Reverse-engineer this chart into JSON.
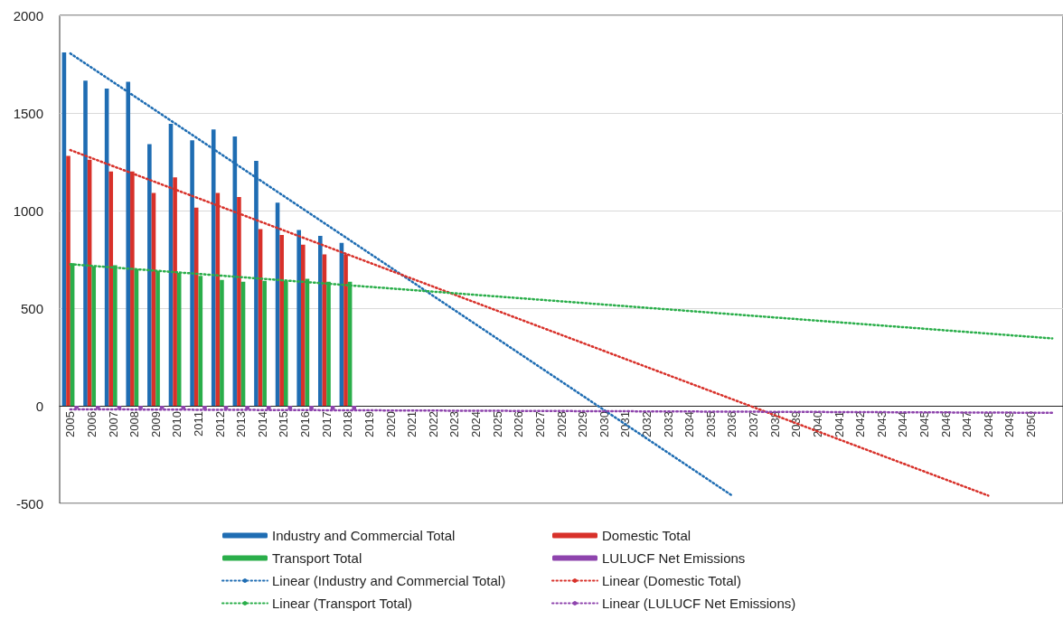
{
  "chart_data": {
    "type": "bar",
    "categories": [
      "2005",
      "2006",
      "2007",
      "2008",
      "2009",
      "2010",
      "2011",
      "2012",
      "2013",
      "2014",
      "2015",
      "2016",
      "2017",
      "2018",
      "2019",
      "2020",
      "2021",
      "2022",
      "2023",
      "2024",
      "2025",
      "2026",
      "2027",
      "2028",
      "2029",
      "2030",
      "2031",
      "2032",
      "2033",
      "2034",
      "2035",
      "2036",
      "2037",
      "2038",
      "2039",
      "2040",
      "2041",
      "2042",
      "2043",
      "2044",
      "2045",
      "2046",
      "2047",
      "2048",
      "2049",
      "2050",
      null
    ],
    "series": [
      {
        "name": "Industry and Commercial Total",
        "color": "#1f6db3",
        "values": [
          1810,
          1665,
          1625,
          1660,
          1340,
          1445,
          1360,
          1415,
          1380,
          1255,
          1040,
          900,
          870,
          835,
          null,
          null,
          null,
          null,
          null,
          null,
          null,
          null,
          null,
          null,
          null,
          null,
          null,
          null,
          null,
          null,
          null,
          null,
          null,
          null,
          null,
          null,
          null,
          null,
          null,
          null,
          null,
          null,
          null,
          null,
          null,
          null,
          null
        ]
      },
      {
        "name": "Domestic Total",
        "color": "#d8312a",
        "values": [
          1280,
          1260,
          1200,
          1200,
          1090,
          1170,
          1015,
          1090,
          1070,
          905,
          875,
          825,
          775,
          775,
          null,
          null,
          null,
          null,
          null,
          null,
          null,
          null,
          null,
          null,
          null,
          null,
          null,
          null,
          null,
          null,
          null,
          null,
          null,
          null,
          null,
          null,
          null,
          null,
          null,
          null,
          null,
          null,
          null,
          null,
          null,
          null,
          null
        ]
      },
      {
        "name": "Transport Total",
        "color": "#2aae4a",
        "values": [
          730,
          715,
          720,
          700,
          690,
          680,
          665,
          645,
          635,
          640,
          640,
          650,
          635,
          635,
          null,
          null,
          null,
          null,
          null,
          null,
          null,
          null,
          null,
          null,
          null,
          null,
          null,
          null,
          null,
          null,
          null,
          null,
          null,
          null,
          null,
          null,
          null,
          null,
          null,
          null,
          null,
          null,
          null,
          null,
          null,
          null,
          null
        ]
      },
      {
        "name": "LULUCF Net Emissions",
        "color": "#8e44ad",
        "values": [
          -15,
          -16,
          -16,
          -17,
          -17,
          -18,
          -18,
          -19,
          -19,
          -20,
          -20,
          -21,
          -21,
          -22,
          null,
          null,
          null,
          null,
          null,
          null,
          null,
          null,
          null,
          null,
          null,
          null,
          null,
          null,
          null,
          null,
          null,
          null,
          null,
          null,
          null,
          null,
          null,
          null,
          null,
          null,
          null,
          null,
          null,
          null,
          null,
          null,
          null
        ]
      },
      {
        "name": "Linear (Industry and Commercial Total)",
        "type": "line",
        "line_style": "dotted",
        "color": "#1f6db3",
        "values": [
          1805,
          null,
          null,
          null,
          null,
          null,
          null,
          null,
          null,
          null,
          null,
          null,
          null,
          null,
          null,
          null,
          null,
          null,
          null,
          null,
          null,
          null,
          null,
          null,
          null,
          null,
          null,
          null,
          null,
          null,
          null,
          -460,
          null,
          null,
          null,
          null,
          null,
          null,
          null,
          null,
          null,
          null,
          null,
          null,
          null,
          null,
          null
        ]
      },
      {
        "name": "Linear (Domestic Total)",
        "type": "line",
        "line_style": "dotted",
        "color": "#d8312a",
        "values": [
          1310,
          null,
          null,
          null,
          null,
          null,
          null,
          null,
          null,
          null,
          null,
          null,
          null,
          null,
          null,
          null,
          null,
          null,
          null,
          null,
          null,
          null,
          null,
          null,
          null,
          null,
          null,
          null,
          null,
          null,
          null,
          null,
          null,
          null,
          null,
          null,
          null,
          null,
          null,
          null,
          null,
          null,
          null,
          -460,
          null,
          null,
          null
        ]
      },
      {
        "name": "Linear (Transport Total)",
        "type": "line",
        "line_style": "dotted",
        "color": "#2aae4a",
        "values": [
          725,
          null,
          null,
          null,
          null,
          null,
          null,
          null,
          null,
          null,
          null,
          null,
          null,
          null,
          null,
          null,
          null,
          null,
          null,
          null,
          null,
          null,
          null,
          null,
          null,
          null,
          null,
          null,
          null,
          null,
          null,
          null,
          null,
          null,
          null,
          null,
          null,
          null,
          null,
          null,
          null,
          null,
          null,
          null,
          null,
          null,
          345
        ]
      },
      {
        "name": "Linear (LULUCF Net Emissions)",
        "type": "line",
        "line_style": "dotted",
        "color": "#8e44ad",
        "values": [
          -18,
          null,
          null,
          null,
          null,
          null,
          null,
          null,
          null,
          null,
          null,
          null,
          null,
          null,
          null,
          null,
          null,
          null,
          null,
          null,
          null,
          null,
          null,
          null,
          null,
          null,
          null,
          null,
          null,
          null,
          null,
          null,
          null,
          null,
          null,
          null,
          null,
          null,
          null,
          null,
          null,
          null,
          null,
          null,
          null,
          null,
          -36
        ]
      }
    ],
    "ylim": [
      -500,
      2000
    ],
    "yticks": [
      -500,
      0,
      500,
      1000,
      1500,
      2000
    ],
    "grid": "y",
    "legend": "bottom"
  }
}
